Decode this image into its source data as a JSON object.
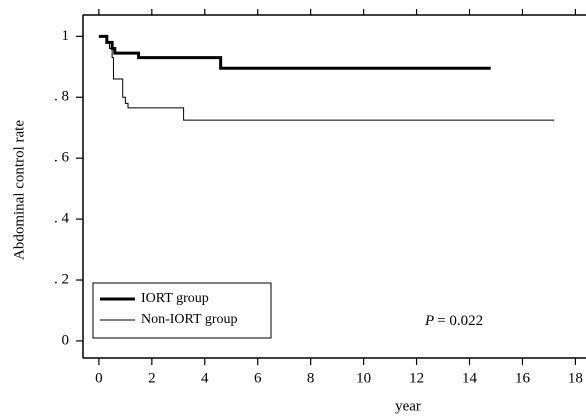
{
  "chart_data": {
    "type": "step",
    "xlabel": "year",
    "ylabel": "Abdominal control rate",
    "xlim": [
      -0.6,
      18.4
    ],
    "ylim": [
      -0.056,
      1.07
    ],
    "xticks": [
      0,
      2,
      4,
      6,
      8,
      10,
      12,
      14,
      16,
      18
    ],
    "yticks": [
      0,
      {
        "value": 0.2,
        "label": ". 2"
      },
      {
        "value": 0.4,
        "label": ". 4"
      },
      {
        "value": 0.6,
        "label": ". 6"
      },
      {
        "value": 0.8,
        "label": ". 8"
      },
      1
    ],
    "legend": "lower left",
    "series": [
      {
        "name": "IORT group",
        "color": "#000000",
        "line_width": 3,
        "x": [
          0,
          0.3,
          0.5,
          0.6,
          1.5,
          4.6,
          14.8
        ],
        "values": [
          1,
          0.98,
          0.96,
          0.945,
          0.93,
          0.895,
          0.895
        ]
      },
      {
        "name": "Non-IORT group",
        "color": "#000000",
        "line_width": 1,
        "x": [
          0,
          0.3,
          0.4,
          0.5,
          0.55,
          0.9,
          1.0,
          1.1,
          3.2,
          17.2
        ],
        "values": [
          1,
          0.98,
          0.96,
          0.93,
          0.86,
          0.8,
          0.78,
          0.765,
          0.725,
          0.725
        ]
      }
    ],
    "annotation": {
      "italic": "P",
      "text": "= 0.022"
    }
  }
}
